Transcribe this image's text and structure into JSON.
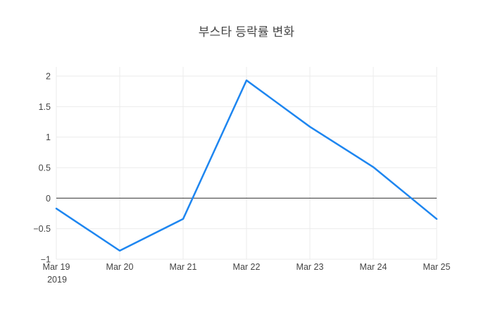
{
  "title": "부스타 등락률 변화",
  "chart_data": {
    "type": "line",
    "title": "부스타 등락률 변화",
    "xlabel": "",
    "ylabel": "",
    "x_labels": [
      "Mar 19",
      "Mar 20",
      "Mar 21",
      "Mar 22",
      "Mar 23",
      "Mar 24",
      "Mar 25"
    ],
    "x_sub_label": "2019",
    "values": [
      -0.17,
      -0.86,
      -0.34,
      1.93,
      1.17,
      0.51,
      -0.34
    ],
    "yticks": [
      -1,
      -0.5,
      0,
      0.5,
      1,
      1.5,
      2
    ],
    "ytick_labels": [
      "−1",
      "−0.5",
      "0",
      "0.5",
      "1",
      "1.5",
      "2"
    ],
    "ylim": [
      -1.0,
      2.15
    ],
    "grid": true,
    "legend": "none",
    "colors": {
      "line": "#1e86f0",
      "grid": "#ebebeb",
      "zero_line": "#444444",
      "text": "#444444",
      "background": "#ffffff"
    }
  }
}
